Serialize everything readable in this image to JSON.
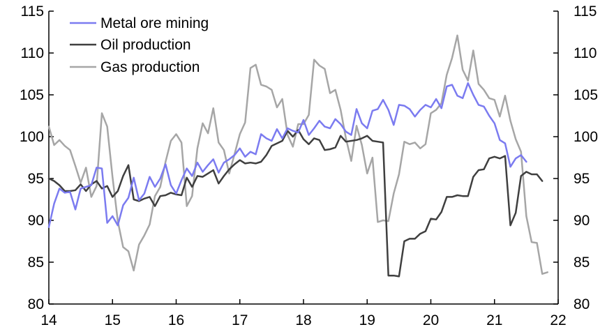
{
  "chart_data": {
    "type": "line",
    "title": "",
    "xlabel": "",
    "ylabel": "",
    "xlim": [
      14,
      22
    ],
    "ylim": [
      80,
      115
    ],
    "y_ticks": [
      80,
      85,
      90,
      95,
      100,
      105,
      110,
      115
    ],
    "x_ticks": [
      14,
      15,
      16,
      17,
      18,
      19,
      20,
      21,
      22
    ],
    "y_tick_labels": [
      "80",
      "85",
      "90",
      "95",
      "100",
      "105",
      "110",
      "115"
    ],
    "x_tick_labels": [
      "14",
      "15",
      "16",
      "17",
      "18",
      "19",
      "20",
      "21",
      "22"
    ],
    "right_y_tick_labels": [
      "80",
      "85",
      "90",
      "95",
      "100",
      "105",
      "110",
      "115"
    ],
    "legend_position": "top-left",
    "start_year": 14,
    "months_per_year": 12,
    "series": [
      {
        "name": "Metal ore mining",
        "color": "#7b7bf0",
        "values": [
          89.2,
          92.0,
          93.8,
          93.3,
          93.4,
          91.3,
          93.8,
          94.0,
          94.2,
          96.3,
          96.2,
          89.7,
          90.5,
          89.4,
          91.8,
          92.7,
          95.1,
          92.4,
          93.2,
          95.2,
          94.0,
          95.0,
          96.7,
          94.2,
          93.2,
          94.8,
          96.2,
          95.3,
          96.9,
          95.8,
          96.6,
          97.3,
          95.7,
          96.9,
          97.3,
          97.8,
          98.6,
          97.6,
          98.2,
          97.9,
          100.3,
          99.8,
          99.5,
          100.9,
          99.8,
          101.0,
          100.7,
          100.5,
          102.0,
          100.2,
          101.0,
          101.9,
          101.2,
          101.0,
          102.1,
          101.5,
          100.6,
          100.2,
          103.3,
          101.6,
          101.0,
          103.1,
          103.3,
          104.4,
          103.2,
          101.4,
          103.8,
          103.7,
          103.3,
          102.4,
          103.2,
          103.8,
          103.5,
          104.5,
          103.4,
          106.0,
          106.2,
          104.9,
          104.6,
          106.4,
          105.0,
          103.8,
          103.6,
          102.5,
          101.6,
          99.6,
          99.2,
          96.4,
          97.4,
          97.8,
          97.0
        ]
      },
      {
        "name": "Oil production",
        "color": "#3f3f3f",
        "values": [
          95.0,
          94.7,
          94.2,
          93.5,
          93.5,
          93.6,
          94.3,
          93.5,
          94.3,
          94.7,
          93.8,
          94.1,
          92.8,
          93.5,
          95.3,
          96.6,
          92.5,
          92.3,
          92.6,
          92.8,
          91.7,
          92.9,
          93.0,
          93.3,
          93.1,
          93.0,
          95.1,
          94.0,
          95.3,
          95.2,
          95.6,
          96.0,
          94.4,
          95.3,
          96.1,
          96.7,
          97.2,
          96.8,
          96.9,
          96.8,
          97.0,
          97.8,
          98.9,
          99.2,
          99.5,
          100.7,
          100.0,
          100.8,
          99.7,
          99.1,
          99.8,
          99.6,
          98.4,
          98.5,
          98.7,
          100.1,
          99.4,
          99.5,
          99.6,
          99.8,
          100.1,
          99.5,
          99.4,
          99.3,
          83.4,
          83.4,
          83.3,
          87.5,
          87.8,
          87.8,
          88.4,
          88.7,
          90.2,
          90.1,
          91.0,
          92.8,
          92.8,
          93.0,
          92.9,
          92.9,
          95.2,
          96.0,
          96.1,
          97.4,
          97.6,
          97.4,
          97.7,
          89.4,
          90.9,
          95.3,
          95.8,
          95.5,
          95.5,
          94.7
        ]
      },
      {
        "name": "Gas production",
        "color": "#a6a6a6",
        "values": [
          101.2,
          99.0,
          99.6,
          98.9,
          98.4,
          96.5,
          94.5,
          96.3,
          92.8,
          94.1,
          102.8,
          101.2,
          95.2,
          89.9,
          86.8,
          86.3,
          84.0,
          87.1,
          88.2,
          89.5,
          92.9,
          94.0,
          97.0,
          99.5,
          100.3,
          99.3,
          91.7,
          92.9,
          98.6,
          101.6,
          100.4,
          103.4,
          99.3,
          98.4,
          95.6,
          97.9,
          100.3,
          101.7,
          108.2,
          108.6,
          106.2,
          106.0,
          105.6,
          103.5,
          104.5,
          100.2,
          98.8,
          101.5,
          101.5,
          102.6,
          109.2,
          108.5,
          108.1,
          105.2,
          105.6,
          103.2,
          99.8,
          97.1,
          101.3,
          99.0,
          95.6,
          97.5,
          89.8,
          90.0,
          89.9,
          93.2,
          95.5,
          99.4,
          99.1,
          99.3,
          98.6,
          99.1,
          102.8,
          103.2,
          104.0,
          107.4,
          109.4,
          112.1,
          108.0,
          106.7,
          110.3,
          106.3,
          105.6,
          104.6,
          104.4,
          102.4,
          104.9,
          101.9,
          99.7,
          98.2,
          90.5,
          87.4,
          87.3,
          83.6,
          83.8
        ]
      }
    ]
  }
}
